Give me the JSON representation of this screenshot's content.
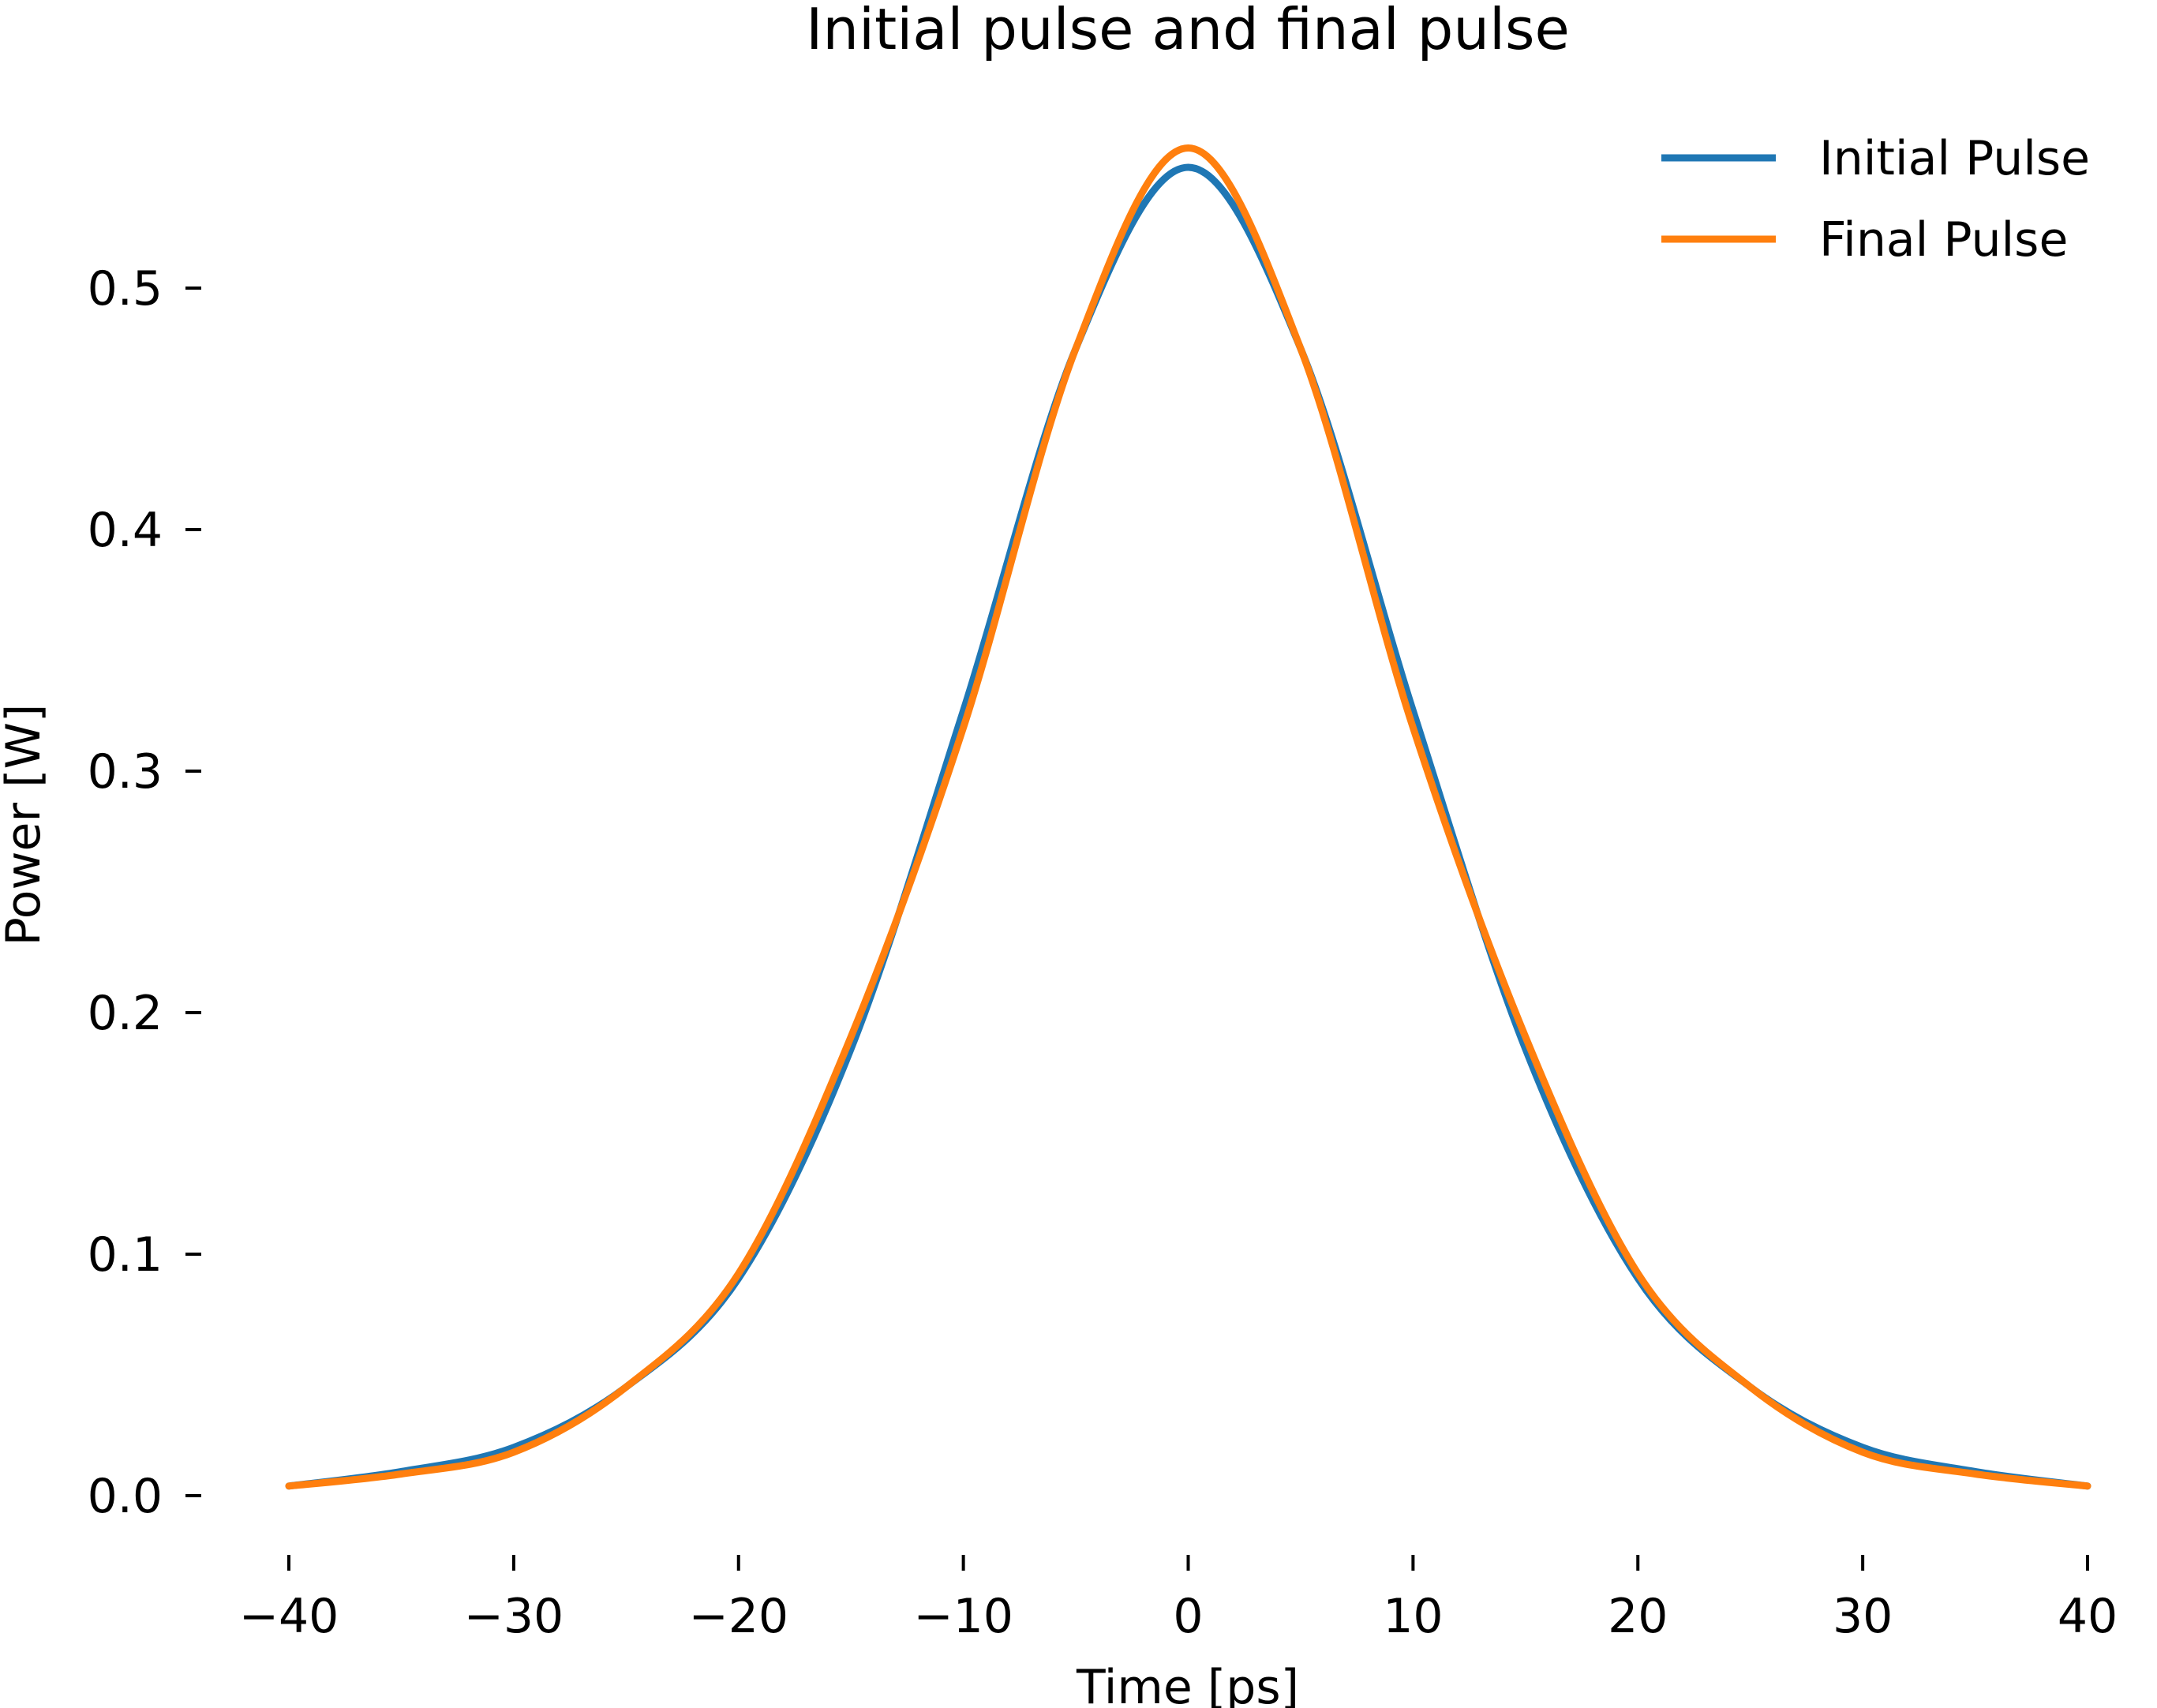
{
  "chart_data": {
    "type": "line",
    "title": "Initial pulse and final pulse",
    "xlabel": "Time [ps]",
    "ylabel": "Power [W]",
    "xlim": [
      -40,
      40
    ],
    "ylim": [
      0,
      0.56
    ],
    "xticks": [
      -40,
      -30,
      -20,
      -10,
      0,
      10,
      20,
      30,
      40
    ],
    "xtick_labels": [
      "−40",
      "−30",
      "−20",
      "−10",
      "0",
      "10",
      "20",
      "30",
      "40"
    ],
    "yticks": [
      0.0,
      0.1,
      0.2,
      0.3,
      0.4,
      0.5
    ],
    "ytick_labels": [
      "0.0",
      "0.1",
      "0.2",
      "0.3",
      "0.4",
      "0.5"
    ],
    "grid": false,
    "legend": "top-right",
    "x": [
      -40,
      -35,
      -30,
      -25,
      -20,
      -15,
      -10,
      -5,
      0,
      5,
      10,
      15,
      20,
      25,
      30,
      35,
      40
    ],
    "series": [
      {
        "name": "Initial Pulse",
        "color": "#1f77b4",
        "values": [
          0.004,
          0.01,
          0.02,
          0.045,
          0.09,
          0.185,
          0.325,
          0.475,
          0.55,
          0.475,
          0.325,
          0.185,
          0.09,
          0.045,
          0.02,
          0.01,
          0.004
        ]
      },
      {
        "name": "Final Pulse",
        "color": "#ff7f0e",
        "values": [
          0.004,
          0.009,
          0.018,
          0.045,
          0.092,
          0.19,
          0.318,
          0.475,
          0.558,
          0.475,
          0.318,
          0.19,
          0.092,
          0.045,
          0.018,
          0.009,
          0.004
        ]
      }
    ]
  }
}
